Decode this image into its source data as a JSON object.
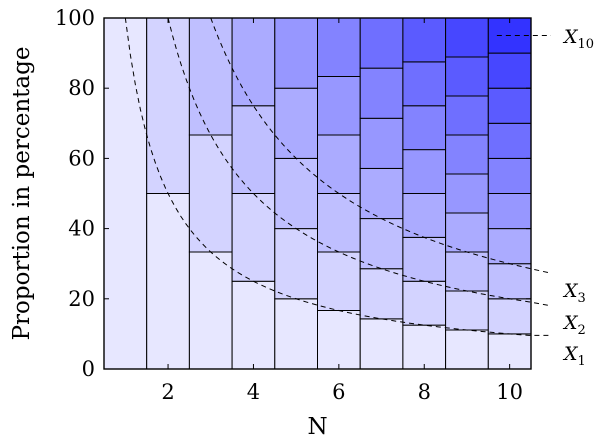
{
  "chart_data": {
    "type": "bar",
    "stacked": true,
    "x": [
      1,
      2,
      3,
      4,
      5,
      6,
      7,
      8,
      9,
      10
    ],
    "segments_per_bar": "N equal segments of 100/N percent each",
    "xlabel": "N",
    "ylabel": "Proportion in percentage",
    "xlim": [
      0.5,
      10.5
    ],
    "ylim": [
      0,
      100
    ],
    "xticks": [
      "2",
      "4",
      "6",
      "8",
      "10"
    ],
    "yticks": [
      "0",
      "20",
      "40",
      "60",
      "80",
      "100"
    ],
    "grid": false,
    "base_color": "#3333ff",
    "curves": [
      {
        "label": "X",
        "sub": "1",
        "x_start": 1,
        "style": "dashed"
      },
      {
        "label": "X",
        "sub": "2",
        "x_start": 2,
        "style": "dashed"
      },
      {
        "label": "X",
        "sub": "3",
        "x_start": 3,
        "style": "dashed"
      },
      {
        "label": "X",
        "sub": "10",
        "x_start": 10,
        "style": "dashed"
      }
    ]
  }
}
